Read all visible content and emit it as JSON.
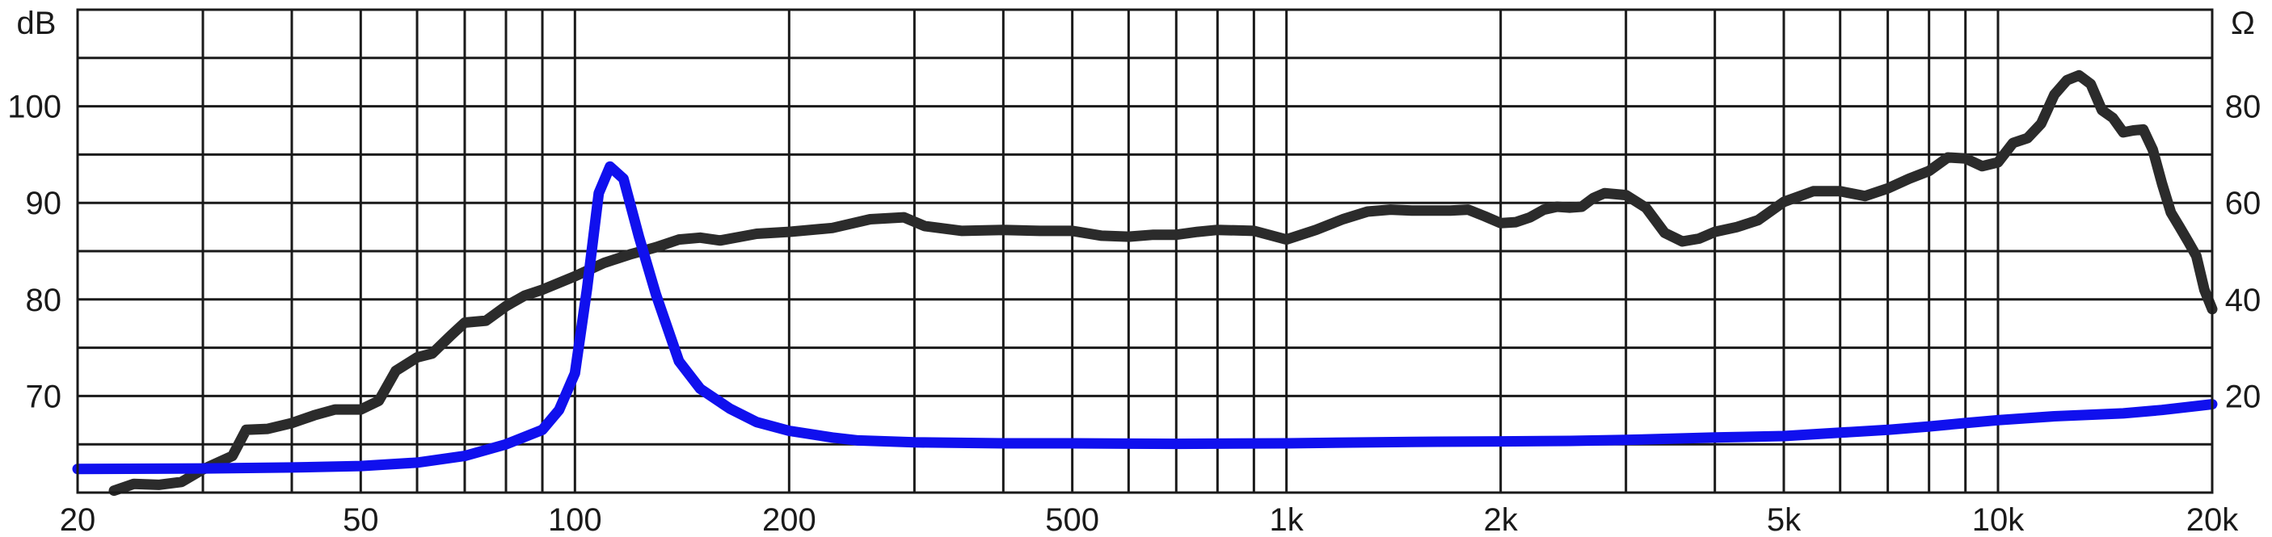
{
  "chart_data": {
    "type": "line",
    "title": "",
    "xlabel": "",
    "x_scale": "log",
    "xlim": [
      20,
      20000
    ],
    "y_left_unit": "dB",
    "y_right_unit": "Ω",
    "y_left_lim": [
      60,
      110
    ],
    "y_right_lim": [
      0,
      100
    ],
    "grid": true,
    "legend": "none",
    "x_ticks": [
      {
        "value": 20,
        "label": "20"
      },
      {
        "value": 50,
        "label": "50"
      },
      {
        "value": 100,
        "label": "100"
      },
      {
        "value": 200,
        "label": "200"
      },
      {
        "value": 500,
        "label": "500"
      },
      {
        "value": 1000,
        "label": "1k"
      },
      {
        "value": 2000,
        "label": "2k"
      },
      {
        "value": 5000,
        "label": "5k"
      },
      {
        "value": 10000,
        "label": "10k"
      },
      {
        "value": 20000,
        "label": "20k"
      }
    ],
    "x_grid_minor": [
      30,
      40,
      60,
      70,
      80,
      90,
      300,
      400,
      600,
      700,
      800,
      900,
      3000,
      4000,
      6000,
      7000,
      8000,
      9000
    ],
    "y_left_ticks": [
      {
        "value": 70,
        "label": "70"
      },
      {
        "value": 80,
        "label": "80"
      },
      {
        "value": 90,
        "label": "90"
      },
      {
        "value": 100,
        "label": "100"
      }
    ],
    "y_right_ticks": [
      {
        "value": 20,
        "label": "20"
      },
      {
        "value": 40,
        "label": "40"
      },
      {
        "value": 60,
        "label": "60"
      },
      {
        "value": 80,
        "label": "80"
      }
    ],
    "y_grid": [
      60,
      65,
      70,
      75,
      80,
      85,
      90,
      95,
      100,
      105,
      110
    ],
    "series": [
      {
        "color": "#2b2b2b",
        "axis": "left",
        "points": [
          [
            22.5,
            60.2
          ],
          [
            24,
            60.9
          ],
          [
            26,
            60.8
          ],
          [
            28,
            61.1
          ],
          [
            30,
            62.4
          ],
          [
            33,
            63.8
          ],
          [
            34.5,
            66.5
          ],
          [
            37,
            66.6
          ],
          [
            40,
            67.2
          ],
          [
            43,
            68
          ],
          [
            46,
            68.6
          ],
          [
            50,
            68.6
          ],
          [
            53,
            69.5
          ],
          [
            56,
            72.6
          ],
          [
            60,
            74
          ],
          [
            63,
            74.4
          ],
          [
            67,
            76.3
          ],
          [
            70,
            77.6
          ],
          [
            75,
            77.8
          ],
          [
            80,
            79.3
          ],
          [
            85,
            80.4
          ],
          [
            90,
            81
          ],
          [
            100,
            82.4
          ],
          [
            110,
            83.8
          ],
          [
            120,
            84.7
          ],
          [
            130,
            85.4
          ],
          [
            140,
            86.2
          ],
          [
            150,
            86.4
          ],
          [
            160,
            86.1
          ],
          [
            180,
            86.8
          ],
          [
            200,
            87
          ],
          [
            230,
            87.4
          ],
          [
            260,
            88.3
          ],
          [
            290,
            88.5
          ],
          [
            310,
            87.6
          ],
          [
            350,
            87.1
          ],
          [
            400,
            87.2
          ],
          [
            450,
            87.1
          ],
          [
            500,
            87.1
          ],
          [
            550,
            86.6
          ],
          [
            600,
            86.5
          ],
          [
            650,
            86.7
          ],
          [
            700,
            86.7
          ],
          [
            750,
            87
          ],
          [
            800,
            87.2
          ],
          [
            900,
            87.1
          ],
          [
            1000,
            86.2
          ],
          [
            1100,
            87.2
          ],
          [
            1200,
            88.3
          ],
          [
            1300,
            89.1
          ],
          [
            1400,
            89.3
          ],
          [
            1500,
            89.2
          ],
          [
            1700,
            89.2
          ],
          [
            1800,
            89.3
          ],
          [
            1900,
            88.6
          ],
          [
            2000,
            87.9
          ],
          [
            2100,
            88
          ],
          [
            2200,
            88.5
          ],
          [
            2300,
            89.3
          ],
          [
            2400,
            89.6
          ],
          [
            2500,
            89.5
          ],
          [
            2600,
            89.6
          ],
          [
            2700,
            90.5
          ],
          [
            2800,
            91
          ],
          [
            3000,
            90.8
          ],
          [
            3200,
            89.5
          ],
          [
            3400,
            86.9
          ],
          [
            3600,
            86
          ],
          [
            3800,
            86.3
          ],
          [
            4000,
            87
          ],
          [
            4300,
            87.5
          ],
          [
            4600,
            88.2
          ],
          [
            5000,
            90.1
          ],
          [
            5500,
            91.2
          ],
          [
            6000,
            91.2
          ],
          [
            6500,
            90.7
          ],
          [
            7000,
            91.5
          ],
          [
            7500,
            92.5
          ],
          [
            8000,
            93.3
          ],
          [
            8500,
            94.7
          ],
          [
            9000,
            94.6
          ],
          [
            9500,
            93.8
          ],
          [
            10000,
            94.2
          ],
          [
            10500,
            96.2
          ],
          [
            11000,
            96.7
          ],
          [
            11500,
            98.2
          ],
          [
            12000,
            101.2
          ],
          [
            12500,
            102.7
          ],
          [
            13000,
            103.2
          ],
          [
            13500,
            102.3
          ],
          [
            14000,
            99.6
          ],
          [
            14500,
            98.8
          ],
          [
            15000,
            97.3
          ],
          [
            15500,
            97.5
          ],
          [
            16000,
            97.6
          ],
          [
            16500,
            95.5
          ],
          [
            17000,
            92
          ],
          [
            17500,
            89
          ],
          [
            18000,
            87.5
          ],
          [
            18500,
            86
          ],
          [
            19000,
            84.5
          ],
          [
            19500,
            81
          ],
          [
            20000,
            79
          ]
        ]
      },
      {
        "color": "#1010ee",
        "axis": "right",
        "points": [
          [
            20,
            4.9
          ],
          [
            30,
            5
          ],
          [
            40,
            5.2
          ],
          [
            50,
            5.5
          ],
          [
            60,
            6.2
          ],
          [
            70,
            7.6
          ],
          [
            80,
            10
          ],
          [
            90,
            13
          ],
          [
            95,
            17.1
          ],
          [
            100,
            24.7
          ],
          [
            104,
            42.2
          ],
          [
            108,
            62
          ],
          [
            112,
            67.5
          ],
          [
            117,
            65
          ],
          [
            123,
            53
          ],
          [
            130,
            41
          ],
          [
            140,
            27.2
          ],
          [
            150,
            21.5
          ],
          [
            165,
            17.4
          ],
          [
            180,
            14.6
          ],
          [
            200,
            12.8
          ],
          [
            230,
            11.4
          ],
          [
            250,
            10.8
          ],
          [
            300,
            10.4
          ],
          [
            400,
            10.2
          ],
          [
            500,
            10.2
          ],
          [
            700,
            10.1
          ],
          [
            1000,
            10.2
          ],
          [
            1500,
            10.5
          ],
          [
            2000,
            10.6
          ],
          [
            2500,
            10.7
          ],
          [
            3000,
            10.9
          ],
          [
            4000,
            11.4
          ],
          [
            5000,
            11.7
          ],
          [
            6000,
            12.4
          ],
          [
            7000,
            13
          ],
          [
            8000,
            13.7
          ],
          [
            9000,
            14.4
          ],
          [
            10000,
            15
          ],
          [
            12000,
            15.8
          ],
          [
            15000,
            16.4
          ],
          [
            17000,
            17.1
          ],
          [
            20000,
            18.3
          ]
        ]
      }
    ]
  }
}
